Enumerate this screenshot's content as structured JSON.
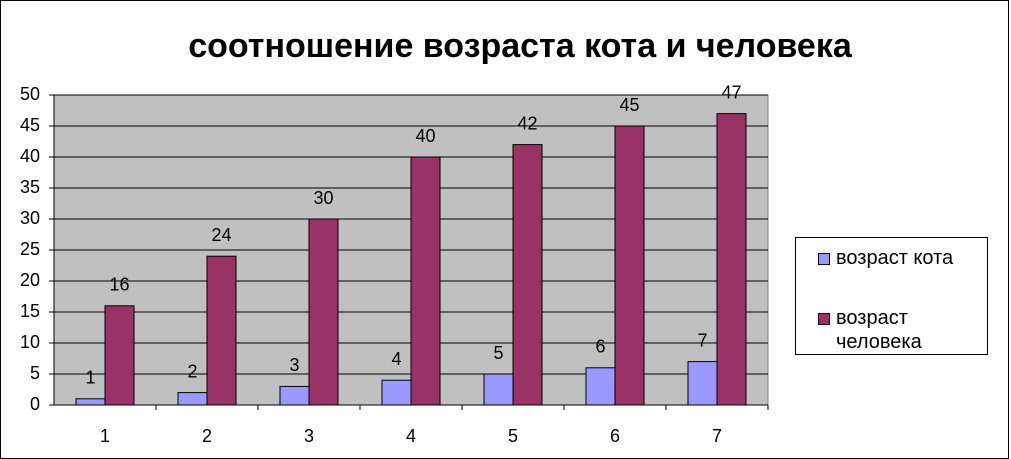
{
  "chart_data": {
    "type": "bar",
    "title": "соотношение возраста кота и человека",
    "categories": [
      "1",
      "2",
      "3",
      "4",
      "5",
      "6",
      "7"
    ],
    "series": [
      {
        "name": "возраст кота",
        "color": "#9999ff",
        "values": [
          1,
          2,
          3,
          4,
          5,
          6,
          7
        ]
      },
      {
        "name": "возраст человека",
        "color": "#993366",
        "values": [
          16,
          24,
          30,
          40,
          42,
          45,
          47
        ]
      }
    ],
    "ylim": [
      0,
      50
    ],
    "yticks": [
      0,
      5,
      10,
      15,
      20,
      25,
      30,
      35,
      40,
      45,
      50
    ],
    "grid": true,
    "plot_background": "#c0c0c0",
    "legend": "right"
  }
}
